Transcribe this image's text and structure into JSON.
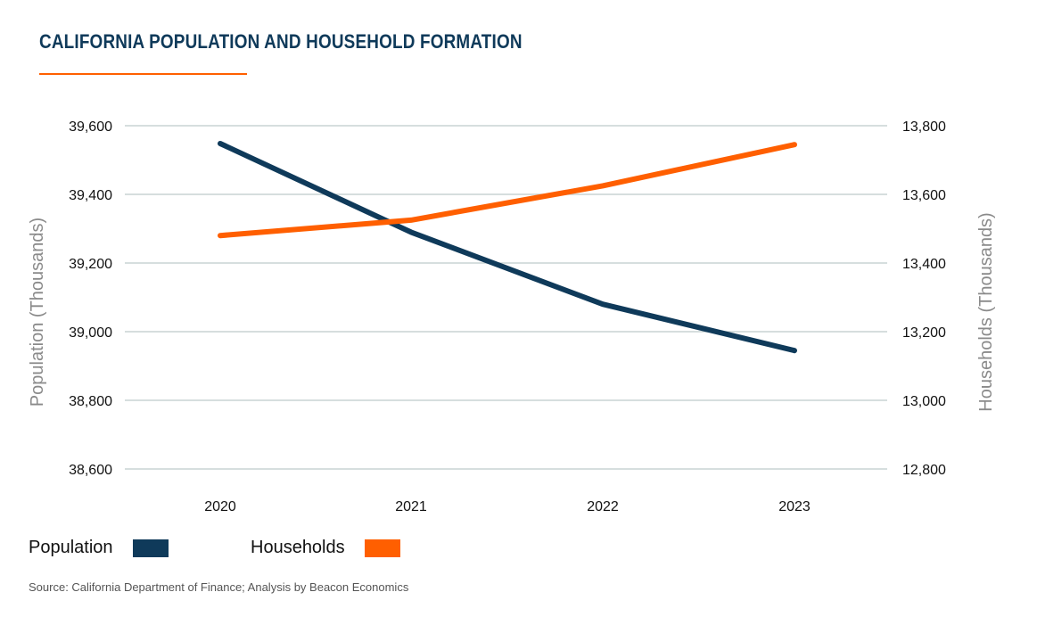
{
  "title": "CALIFORNIA POPULATION AND HOUSEHOLD FORMATION",
  "source": "Source: California Department of Finance; Analysis by Beacon Economics",
  "colors": {
    "population": "#0f3a5a",
    "households": "#ff5f00",
    "grid": "#c9d3d3",
    "title": "#0f3a5a"
  },
  "legend": [
    {
      "label": "Population",
      "color": "#0f3a5a"
    },
    {
      "label": "Households",
      "color": "#ff5f00"
    }
  ],
  "chart_data": {
    "type": "line",
    "categories": [
      "2020",
      "2021",
      "2022",
      "2023"
    ],
    "series": [
      {
        "name": "Population",
        "axis": "left",
        "values": [
          39548,
          39290,
          39080,
          38945
        ]
      },
      {
        "name": "Households",
        "axis": "right",
        "values": [
          13480,
          13525,
          13625,
          13745
        ]
      }
    ],
    "ylabel_left": "Population (Thousands)",
    "ylabel_right": "Households (Thousands)",
    "ylim_left": [
      38600,
      39600
    ],
    "ylim_right": [
      12800,
      13800
    ],
    "yticks_left": [
      "39,600",
      "39,400",
      "39,200",
      "39,000",
      "38,800",
      "38,600"
    ],
    "yticks_right": [
      "13,800",
      "13,600",
      "13,400",
      "13,200",
      "13,000",
      "12,800"
    ],
    "grid": true,
    "legend_position": "bottom-left"
  }
}
